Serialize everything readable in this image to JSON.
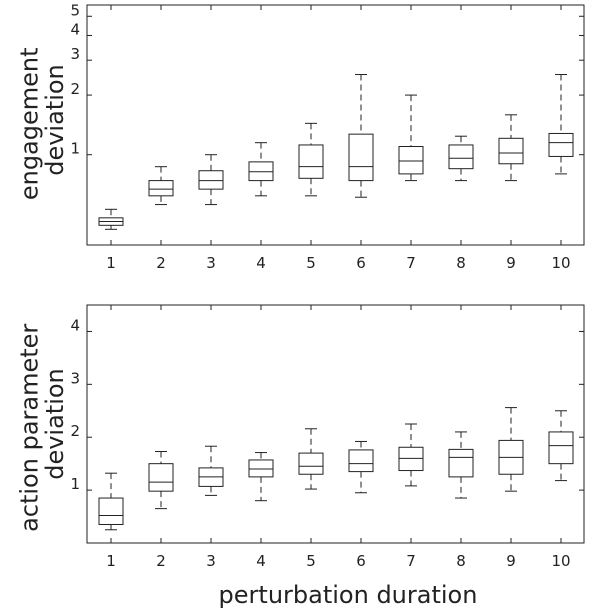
{
  "figure": {
    "xlabel": "perturbation duration"
  },
  "chart_data": [
    {
      "type": "boxplot",
      "ylabel_lines": [
        "engagement",
        "deviation"
      ],
      "y_scale": "log",
      "yticks": [
        1,
        2,
        3,
        4,
        5
      ],
      "ylim": [
        0.35,
        5.7
      ],
      "categories": [
        "1",
        "2",
        "3",
        "4",
        "5",
        "6",
        "7",
        "8",
        "9",
        "10"
      ],
      "boxes": [
        {
          "min": 0.42,
          "q1": 0.44,
          "median": 0.46,
          "q3": 0.48,
          "max": 0.53
        },
        {
          "min": 0.56,
          "q1": 0.62,
          "median": 0.67,
          "q3": 0.74,
          "max": 0.87
        },
        {
          "min": 0.56,
          "q1": 0.67,
          "median": 0.74,
          "q3": 0.83,
          "max": 1.0
        },
        {
          "min": 0.62,
          "q1": 0.74,
          "median": 0.82,
          "q3": 0.92,
          "max": 1.15
        },
        {
          "min": 0.62,
          "q1": 0.76,
          "median": 0.87,
          "q3": 1.12,
          "max": 1.44
        },
        {
          "min": 0.61,
          "q1": 0.74,
          "median": 0.87,
          "q3": 1.27,
          "max": 2.54
        },
        {
          "min": 0.74,
          "q1": 0.8,
          "median": 0.93,
          "q3": 1.1,
          "max": 2.0
        },
        {
          "min": 0.74,
          "q1": 0.85,
          "median": 0.96,
          "q3": 1.12,
          "max": 1.24
        },
        {
          "min": 0.74,
          "q1": 0.9,
          "median": 1.02,
          "q3": 1.21,
          "max": 1.59
        },
        {
          "min": 0.8,
          "q1": 0.98,
          "median": 1.15,
          "q3": 1.28,
          "max": 2.54
        }
      ]
    },
    {
      "type": "boxplot",
      "ylabel_lines": [
        "action parameter",
        "deviation"
      ],
      "y_scale": "linear",
      "yticks": [
        1,
        2,
        3,
        4
      ],
      "ylim": [
        0,
        4.5
      ],
      "categories": [
        "1",
        "2",
        "3",
        "4",
        "5",
        "6",
        "7",
        "8",
        "9",
        "10"
      ],
      "boxes": [
        {
          "min": 0.25,
          "q1": 0.35,
          "median": 0.52,
          "q3": 0.85,
          "max": 1.32
        },
        {
          "min": 0.65,
          "q1": 0.98,
          "median": 1.15,
          "q3": 1.5,
          "max": 1.73
        },
        {
          "min": 0.9,
          "q1": 1.07,
          "median": 1.25,
          "q3": 1.42,
          "max": 1.83
        },
        {
          "min": 0.8,
          "q1": 1.25,
          "median": 1.4,
          "q3": 1.57,
          "max": 1.71
        },
        {
          "min": 1.02,
          "q1": 1.3,
          "median": 1.45,
          "q3": 1.7,
          "max": 2.16
        },
        {
          "min": 0.95,
          "q1": 1.35,
          "median": 1.5,
          "q3": 1.76,
          "max": 1.92
        },
        {
          "min": 1.08,
          "q1": 1.37,
          "median": 1.6,
          "q3": 1.81,
          "max": 2.25
        },
        {
          "min": 0.85,
          "q1": 1.25,
          "median": 1.62,
          "q3": 1.77,
          "max": 2.1
        },
        {
          "min": 0.98,
          "q1": 1.3,
          "median": 1.62,
          "q3": 1.94,
          "max": 2.56
        },
        {
          "min": 1.18,
          "q1": 1.5,
          "median": 1.84,
          "q3": 2.1,
          "max": 2.5
        }
      ]
    }
  ]
}
